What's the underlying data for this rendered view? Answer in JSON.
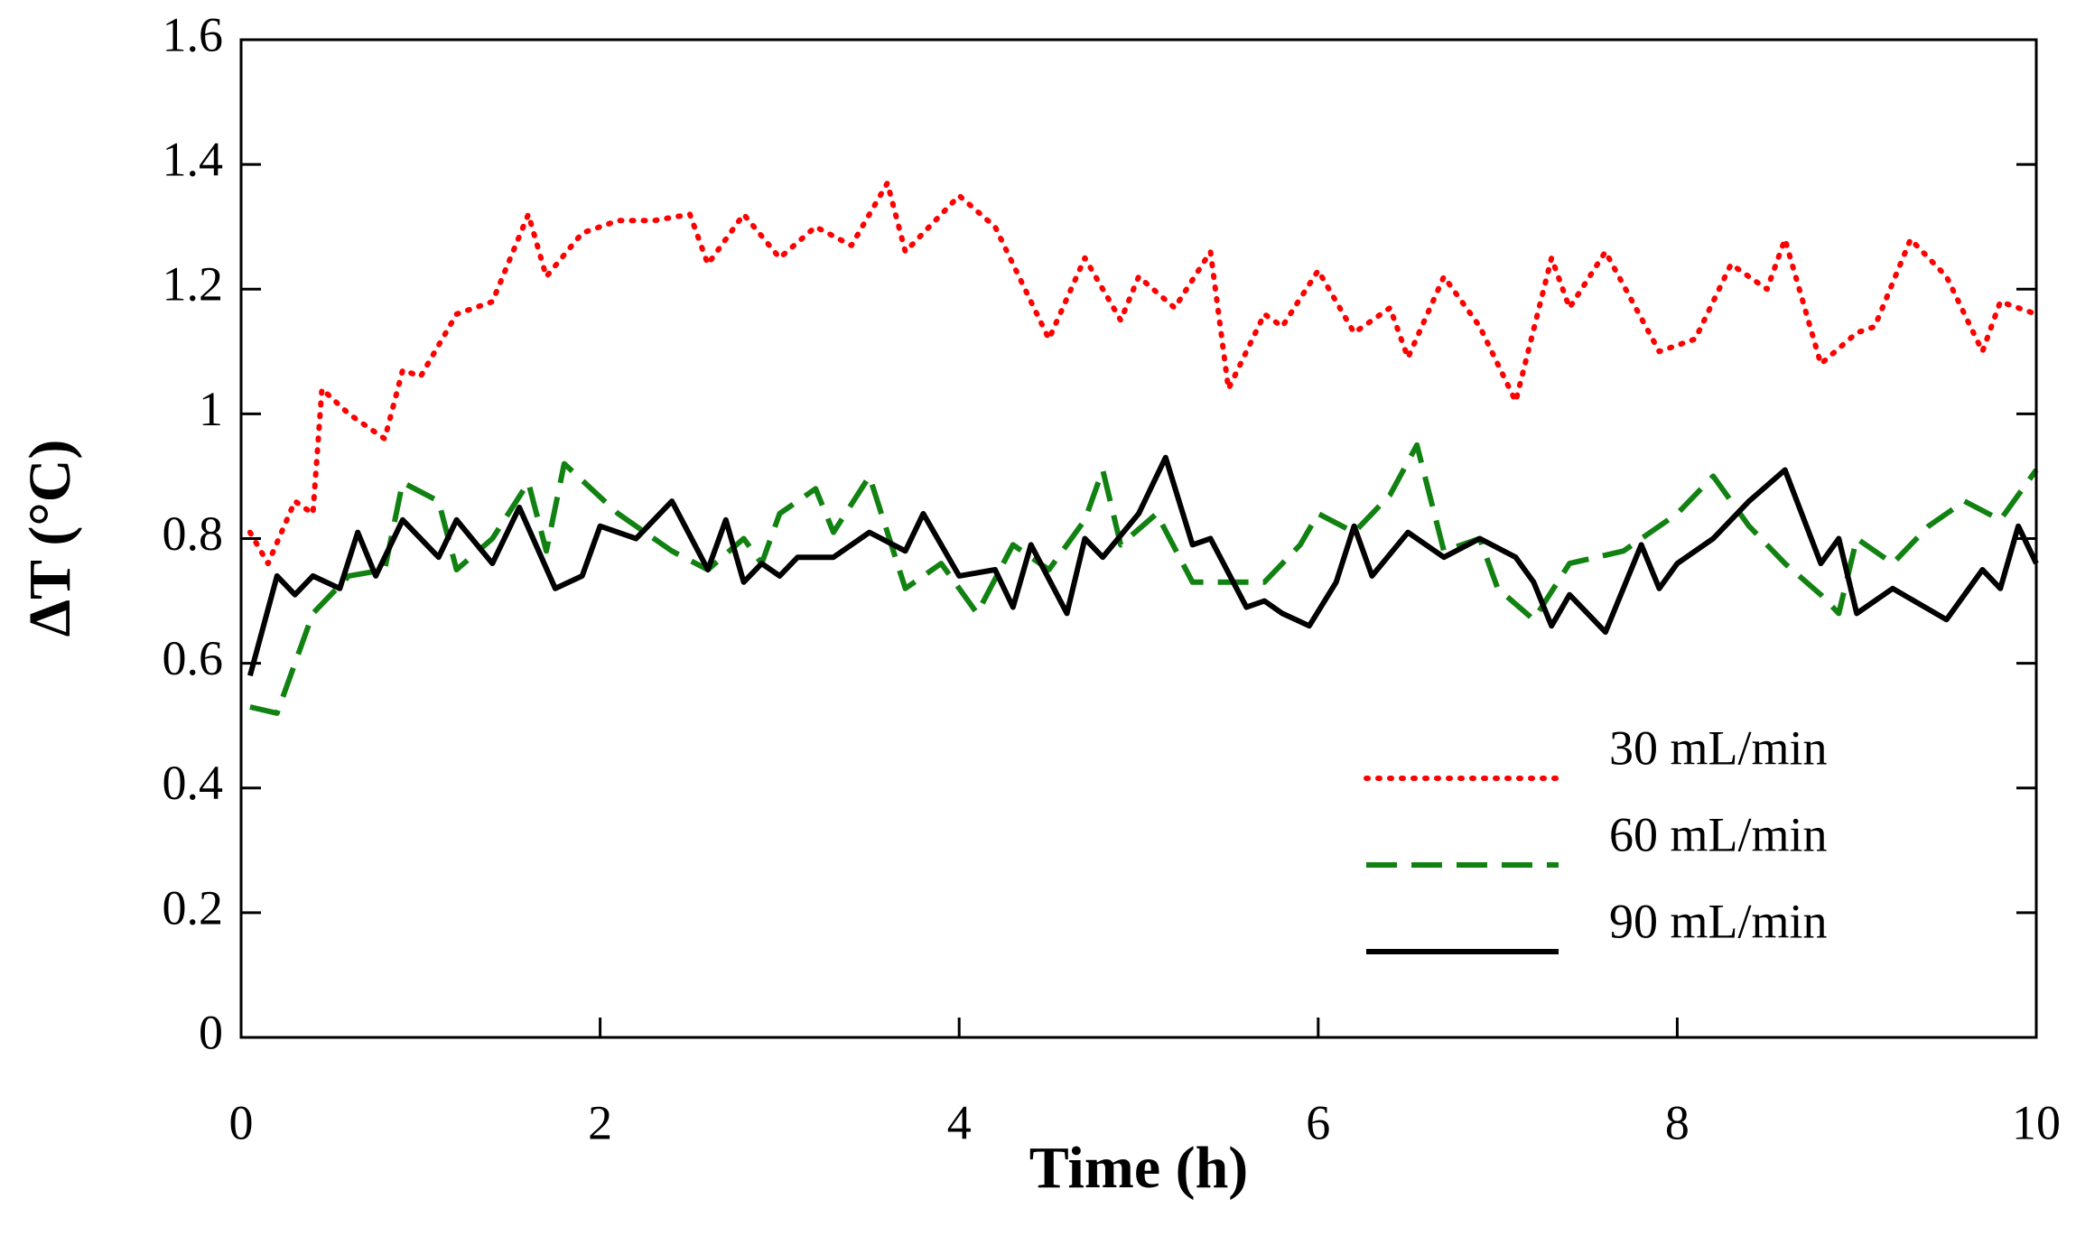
{
  "chart_data": {
    "type": "line",
    "xlabel": "Time (h)",
    "ylabel": "ΔT (°C)",
    "xlim": [
      0,
      10
    ],
    "xticks": [
      0,
      2,
      4,
      6,
      8,
      10
    ],
    "ylim": [
      0,
      1.6
    ],
    "yticks": [
      0,
      0.2,
      0.4,
      0.6,
      0.8,
      1,
      1.2,
      1.4,
      1.6
    ],
    "legend": "lower right",
    "series": [
      {
        "name": "30 mL/min",
        "color": "#ff0000",
        "style": "dotted",
        "x": [
          0.05,
          0.15,
          0.3,
          0.4,
          0.45,
          0.6,
          0.8,
          0.9,
          1.0,
          1.2,
          1.4,
          1.6,
          1.7,
          1.9,
          2.1,
          2.3,
          2.5,
          2.6,
          2.8,
          3.0,
          3.2,
          3.4,
          3.6,
          3.7,
          4.0,
          4.2,
          4.5,
          4.7,
          4.9,
          5.0,
          5.2,
          5.4,
          5.5,
          5.7,
          5.8,
          6.0,
          6.2,
          6.4,
          6.5,
          6.7,
          6.9,
          7.1,
          7.3,
          7.4,
          7.6,
          7.9,
          8.1,
          8.3,
          8.5,
          8.6,
          8.8,
          9.0,
          9.1,
          9.3,
          9.5,
          9.7,
          9.8,
          10.0
        ],
        "values": [
          0.81,
          0.76,
          0.86,
          0.84,
          1.04,
          1.0,
          0.96,
          1.07,
          1.06,
          1.16,
          1.18,
          1.32,
          1.22,
          1.29,
          1.31,
          1.31,
          1.32,
          1.24,
          1.32,
          1.25,
          1.3,
          1.27,
          1.37,
          1.26,
          1.35,
          1.3,
          1.12,
          1.25,
          1.15,
          1.22,
          1.17,
          1.26,
          1.04,
          1.16,
          1.14,
          1.23,
          1.13,
          1.17,
          1.09,
          1.22,
          1.14,
          1.02,
          1.25,
          1.17,
          1.26,
          1.1,
          1.12,
          1.24,
          1.2,
          1.28,
          1.08,
          1.13,
          1.14,
          1.28,
          1.22,
          1.1,
          1.18,
          1.16
        ]
      },
      {
        "name": "60 mL/min",
        "color": "#118211",
        "style": "dashed",
        "x": [
          0.05,
          0.2,
          0.4,
          0.6,
          0.8,
          0.9,
          1.1,
          1.2,
          1.4,
          1.6,
          1.7,
          1.8,
          2.1,
          2.4,
          2.6,
          2.8,
          2.9,
          3.0,
          3.2,
          3.3,
          3.5,
          3.7,
          3.9,
          4.1,
          4.3,
          4.5,
          4.7,
          4.8,
          4.9,
          5.1,
          5.3,
          5.5,
          5.7,
          5.9,
          6.0,
          6.2,
          6.4,
          6.55,
          6.7,
          6.9,
          7.0,
          7.2,
          7.4,
          7.7,
          8.0,
          8.2,
          8.4,
          8.6,
          8.8,
          8.9,
          9.0,
          9.2,
          9.4,
          9.6,
          9.8,
          10.0
        ],
        "values": [
          0.53,
          0.52,
          0.68,
          0.74,
          0.75,
          0.89,
          0.86,
          0.75,
          0.8,
          0.89,
          0.78,
          0.92,
          0.84,
          0.78,
          0.75,
          0.8,
          0.76,
          0.84,
          0.88,
          0.81,
          0.9,
          0.72,
          0.76,
          0.68,
          0.79,
          0.75,
          0.83,
          0.91,
          0.79,
          0.84,
          0.73,
          0.73,
          0.73,
          0.79,
          0.84,
          0.81,
          0.87,
          0.95,
          0.78,
          0.8,
          0.72,
          0.67,
          0.76,
          0.78,
          0.84,
          0.9,
          0.82,
          0.76,
          0.71,
          0.68,
          0.8,
          0.76,
          0.82,
          0.86,
          0.83,
          0.91
        ]
      },
      {
        "name": "90 mL/min",
        "color": "#000000",
        "style": "solid",
        "x": [
          0.05,
          0.2,
          0.3,
          0.4,
          0.55,
          0.65,
          0.75,
          0.9,
          1.1,
          1.2,
          1.4,
          1.55,
          1.75,
          1.9,
          2.0,
          2.2,
          2.4,
          2.6,
          2.7,
          2.8,
          2.9,
          3.0,
          3.1,
          3.3,
          3.5,
          3.7,
          3.8,
          4.0,
          4.2,
          4.3,
          4.4,
          4.6,
          4.7,
          4.8,
          5.0,
          5.15,
          5.3,
          5.4,
          5.6,
          5.7,
          5.8,
          5.95,
          6.1,
          6.2,
          6.3,
          6.5,
          6.7,
          6.9,
          7.1,
          7.2,
          7.3,
          7.4,
          7.6,
          7.8,
          7.9,
          8.0,
          8.2,
          8.4,
          8.6,
          8.8,
          8.9,
          9.0,
          9.2,
          9.5,
          9.7,
          9.8,
          9.9,
          10.0
        ],
        "values": [
          0.58,
          0.74,
          0.71,
          0.74,
          0.72,
          0.81,
          0.74,
          0.83,
          0.77,
          0.83,
          0.76,
          0.85,
          0.72,
          0.74,
          0.82,
          0.8,
          0.86,
          0.75,
          0.83,
          0.73,
          0.76,
          0.74,
          0.77,
          0.77,
          0.81,
          0.78,
          0.84,
          0.74,
          0.75,
          0.69,
          0.79,
          0.68,
          0.8,
          0.77,
          0.84,
          0.93,
          0.79,
          0.8,
          0.69,
          0.7,
          0.68,
          0.66,
          0.73,
          0.82,
          0.74,
          0.81,
          0.77,
          0.8,
          0.77,
          0.73,
          0.66,
          0.71,
          0.65,
          0.79,
          0.72,
          0.76,
          0.8,
          0.86,
          0.91,
          0.76,
          0.8,
          0.68,
          0.72,
          0.67,
          0.75,
          0.72,
          0.82,
          0.76
        ]
      }
    ]
  }
}
